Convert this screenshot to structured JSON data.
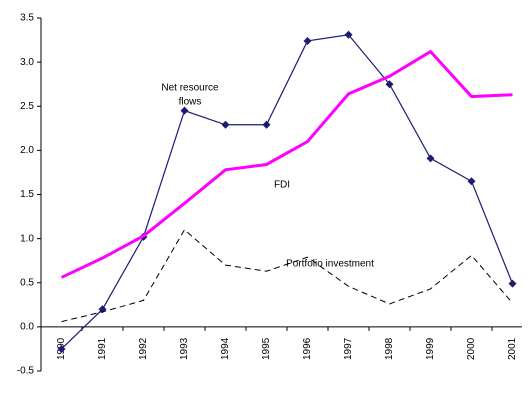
{
  "chart_data": {
    "type": "line",
    "categories": [
      "1990",
      "1991",
      "1992",
      "1993",
      "1994",
      "1995",
      "1996",
      "1997",
      "1998",
      "1999",
      "2000",
      "2001"
    ],
    "series": [
      {
        "name": "Net resource flows",
        "color": "#1c1c72",
        "marker": "diamond",
        "dash": false,
        "width": 1.2,
        "values": [
          -0.25,
          0.2,
          1.02,
          2.45,
          2.29,
          2.29,
          3.24,
          3.31,
          2.75,
          1.91,
          1.65,
          0.49
        ]
      },
      {
        "name": "FDI",
        "color": "#ff00ff",
        "marker": null,
        "dash": false,
        "width": 3,
        "values": [
          0.56,
          0.78,
          1.03,
          1.4,
          1.78,
          1.84,
          2.1,
          2.64,
          2.84,
          3.12,
          2.61,
          2.63
        ]
      },
      {
        "name": "Portfolio investment",
        "color": "#000000",
        "marker": null,
        "dash": true,
        "width": 1,
        "values": [
          0.06,
          0.17,
          0.3,
          1.1,
          0.7,
          0.63,
          0.79,
          0.46,
          0.26,
          0.43,
          0.81,
          0.27
        ]
      }
    ],
    "annotations": [
      {
        "lines": [
          "Net resource",
          "flows"
        ]
      },
      {
        "lines": [
          "FDI"
        ]
      },
      {
        "lines": [
          "Portfolio investment"
        ]
      }
    ],
    "ylim": [
      -0.5,
      3.5
    ],
    "yticks": [
      -0.5,
      {
        "value": 0,
        "label": "0.0"
      },
      0.5,
      {
        "value": 1,
        "label": "1.0"
      },
      1.5,
      {
        "value": 2,
        "label": "2.0"
      },
      2.5,
      {
        "value": 3,
        "label": "3.0"
      },
      3.5
    ]
  }
}
